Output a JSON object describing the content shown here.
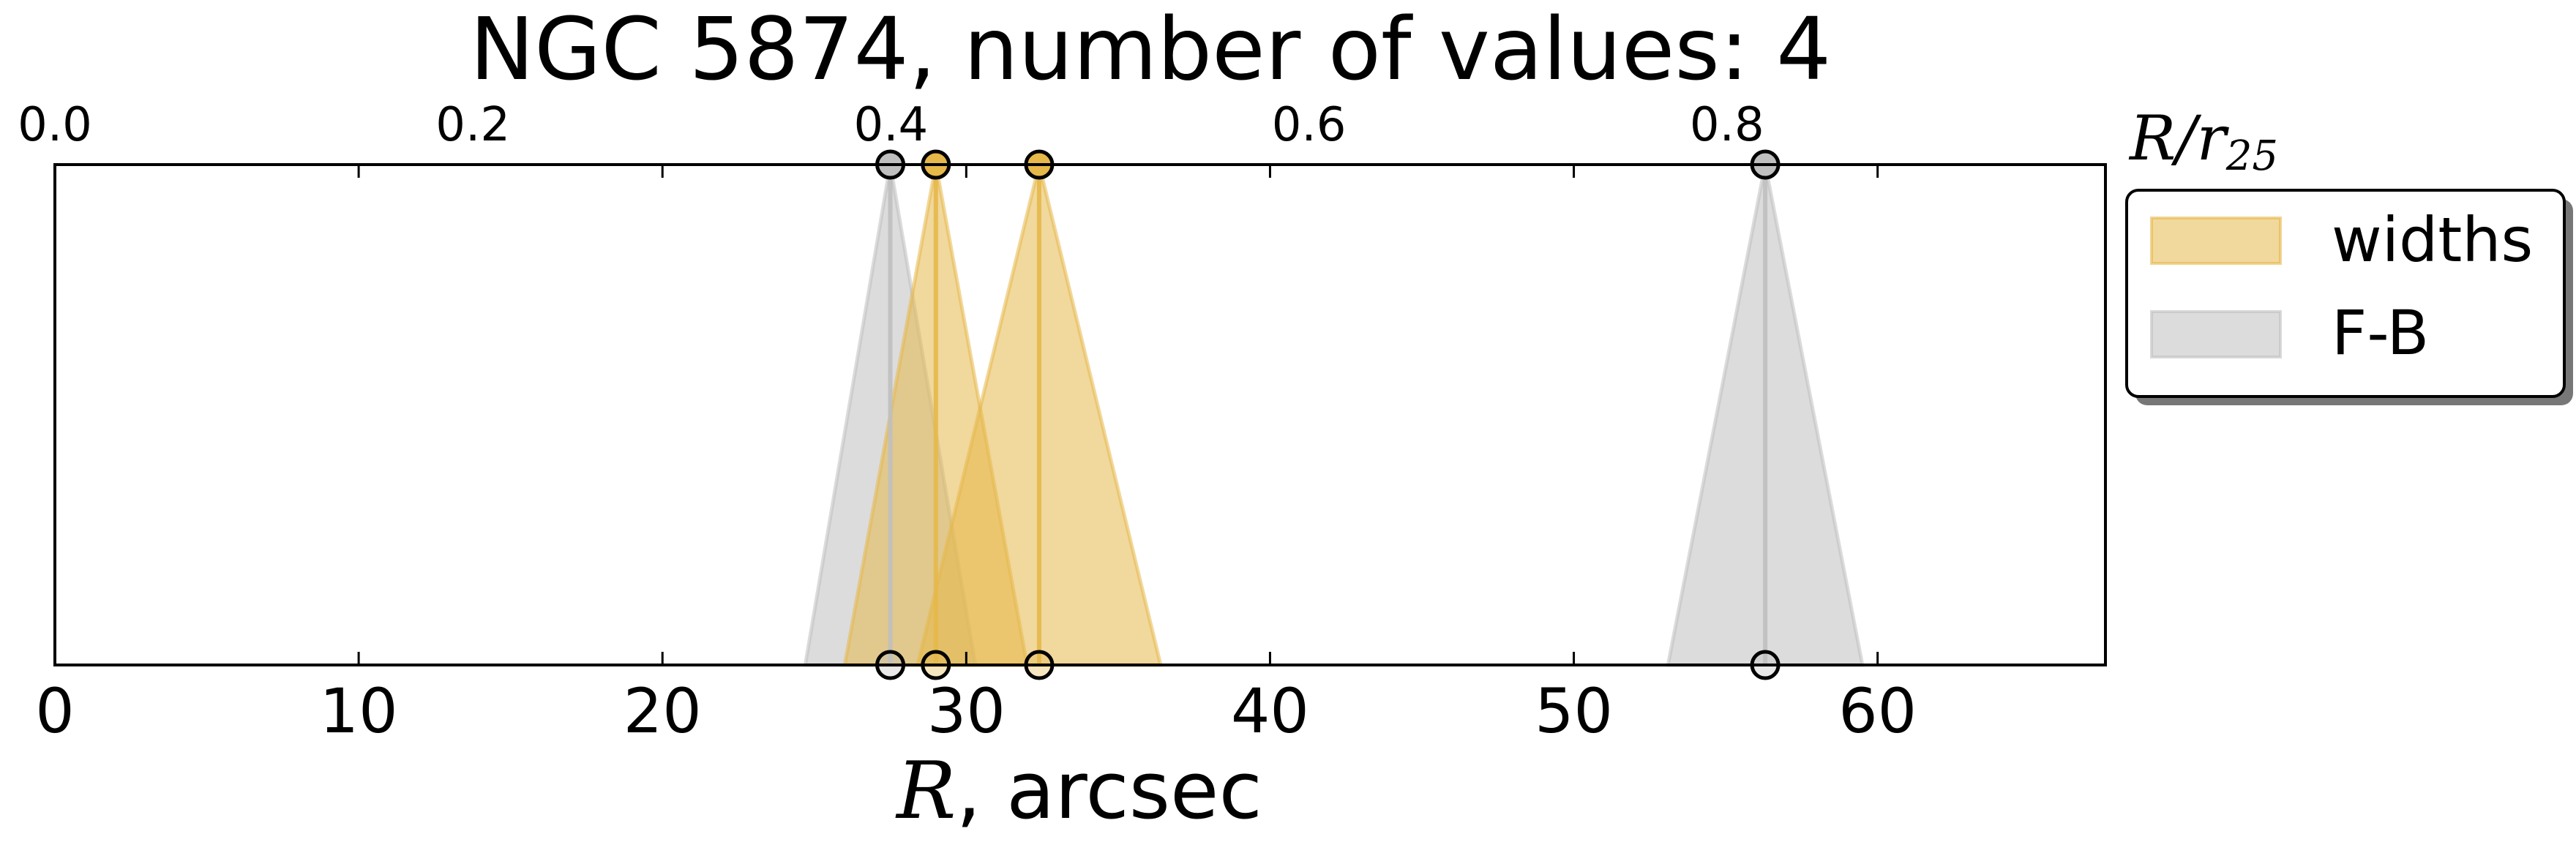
{
  "chart_data": {
    "type": "area",
    "title": "NGC 5874, number of values: 4",
    "xlabel": "$R$, arcsec",
    "xlabel_var": "R",
    "xlabel_unit": ", arcsec",
    "xlim": [
      0,
      67.5
    ],
    "ylim": [
      0,
      1
    ],
    "x_ticks": [
      0,
      10,
      20,
      30,
      40,
      50,
      60
    ],
    "x_tick_labels": [
      "0",
      "10",
      "20",
      "30",
      "40",
      "50",
      "60"
    ],
    "top_axis": {
      "label": "R/r25",
      "label_var": "R",
      "label_sub_var": "r",
      "label_sub": "25",
      "r25_arcsec": 68.8,
      "ticks": [
        0.0,
        0.2,
        0.4,
        0.6,
        0.8
      ],
      "tick_labels": [
        "0.0",
        "0.2",
        "0.4",
        "0.6",
        "0.8"
      ]
    },
    "grid": false,
    "legend_position": "outside-right-top",
    "series": [
      {
        "name": "widths",
        "color": "#e6b84a",
        "items": [
          {
            "center": 29.0,
            "half_width": 3.0
          },
          {
            "center": 32.4,
            "half_width": 4.0
          }
        ]
      },
      {
        "name": "F-B",
        "color": "#bfbfbf",
        "items": [
          {
            "center": 27.5,
            "half_width": 2.8
          },
          {
            "center": 56.3,
            "half_width": 3.2
          }
        ]
      }
    ]
  }
}
